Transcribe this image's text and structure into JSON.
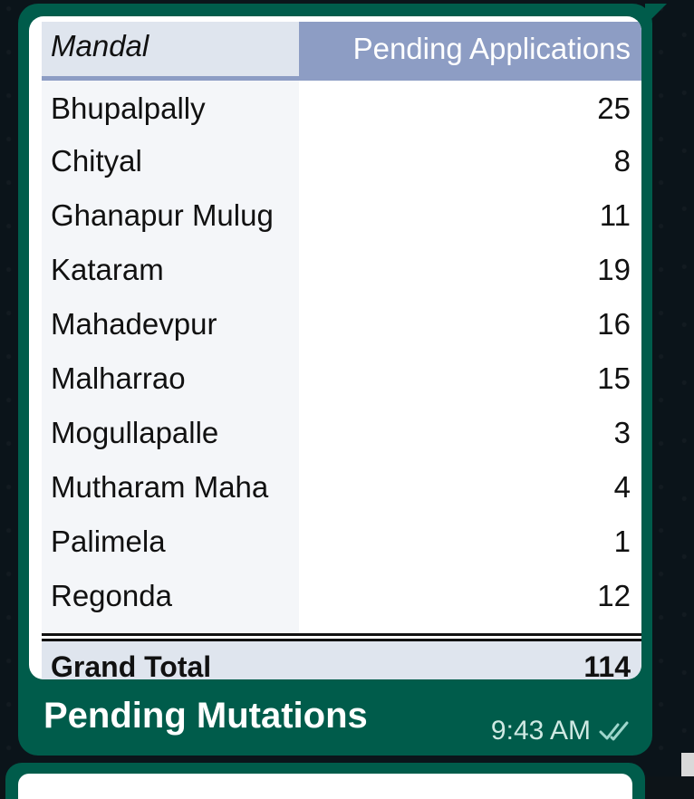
{
  "message": {
    "table": {
      "headers": [
        "Mandal",
        "Pending Applications"
      ],
      "rows": [
        {
          "mandal": "Bhupalpally",
          "value": "25"
        },
        {
          "mandal": "Chityal",
          "value": "8"
        },
        {
          "mandal": "Ghanapur Mulug",
          "value": "11"
        },
        {
          "mandal": "Kataram",
          "value": "19"
        },
        {
          "mandal": "Mahadevpur",
          "value": "16"
        },
        {
          "mandal": "Malharrao",
          "value": "15"
        },
        {
          "mandal": "Mogullapalle",
          "value": "3"
        },
        {
          "mandal": "Mutharam Maha",
          "value": "4"
        },
        {
          "mandal": "Palimela",
          "value": "1"
        },
        {
          "mandal": "Regonda",
          "value": "12"
        }
      ],
      "total": {
        "label": "Grand Total",
        "value": "114"
      }
    },
    "caption": "Pending Mutations",
    "time": "9:43 AM",
    "status_icon": "double-check-icon"
  }
}
